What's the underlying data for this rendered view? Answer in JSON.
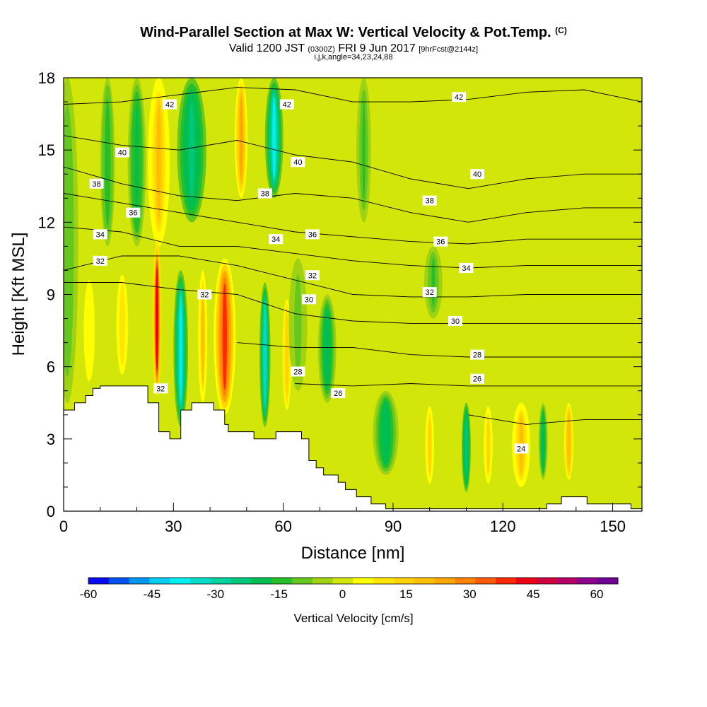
{
  "chart_data": {
    "type": "heatmap",
    "title": {
      "main": "Wind-Parallel Section at Max W: Vertical Velocity & Pot.Temp.",
      "copyright": "(C)",
      "valid_a": "Valid 1200 JST",
      "valid_utc": "(0300Z)",
      "valid_b": "FRI 9 Jun 2017",
      "forecast": "[9hrFcst@2144z]",
      "indices": "i,j,k,angle=34,23,24,88"
    },
    "xlabel": "Distance [nm]",
    "ylabel": "Height [Kft MSL]",
    "xlim": [
      0,
      158
    ],
    "ylim": [
      0,
      18
    ],
    "x_ticks": [
      0,
      30,
      60,
      90,
      120,
      150
    ],
    "y_ticks": [
      0,
      3,
      6,
      9,
      12,
      15,
      18
    ],
    "colorbar": {
      "label": "Vertical Velocity [cm/s]",
      "ticks": [
        -60,
        -45,
        -30,
        -15,
        0,
        15,
        30,
        45,
        60
      ],
      "levels": [
        -60,
        -55,
        -50,
        -45,
        -40,
        -35,
        -30,
        -25,
        -20,
        -15,
        -10,
        -5,
        0,
        5,
        10,
        15,
        20,
        25,
        30,
        35,
        40,
        45,
        50,
        55,
        60,
        65
      ],
      "colors": [
        "#0a0af0",
        "#0050f0",
        "#0096f0",
        "#00cdf0",
        "#00f0f0",
        "#00dcc8",
        "#00d2a0",
        "#00c878",
        "#00be50",
        "#28be28",
        "#64c81e",
        "#a0d214",
        "#d2e60a",
        "#ffff00",
        "#ffe600",
        "#ffd200",
        "#ffbe00",
        "#ffa500",
        "#ff8200",
        "#ff5a00",
        "#ff2800",
        "#f00014",
        "#d2003c",
        "#b40064",
        "#8c008c",
        "#6e0096"
      ]
    },
    "vertical_velocity_columns": [
      {
        "x": 1,
        "w": 6,
        "top": 18,
        "bot": 4.5,
        "v": -10
      },
      {
        "x": 7,
        "w": 5,
        "top": 10,
        "bot": 5,
        "v": 10
      },
      {
        "x": 12,
        "w": 4,
        "top": 18,
        "bot": 11,
        "v": -15
      },
      {
        "x": 16,
        "w": 4,
        "top": 10,
        "bot": 5.5,
        "v": 15
      },
      {
        "x": 20,
        "w": 5,
        "top": 18,
        "bot": 11,
        "v": -20
      },
      {
        "x": 26,
        "w": 6,
        "top": 18,
        "bot": 11,
        "v": 25
      },
      {
        "x": 25.5,
        "w": 2.5,
        "top": 11.2,
        "bot": 4.8,
        "v": 52
      },
      {
        "x": 32,
        "w": 4,
        "top": 10,
        "bot": 3.5,
        "v": -40
      },
      {
        "x": 35,
        "w": 8,
        "top": 18,
        "bot": 12,
        "v": -28
      },
      {
        "x": 38,
        "w": 2.5,
        "top": 10,
        "bot": 4.5,
        "v": 25
      },
      {
        "x": 44,
        "w": 6,
        "top": 10.5,
        "bot": 4,
        "v": 48
      },
      {
        "x": 48.5,
        "w": 3.5,
        "top": 18,
        "bot": 13,
        "v": 30
      },
      {
        "x": 55,
        "w": 3,
        "top": 9.5,
        "bot": 3.5,
        "v": -38
      },
      {
        "x": 57.5,
        "w": 5,
        "top": 18,
        "bot": 13,
        "v": -40
      },
      {
        "x": 61,
        "w": 3,
        "top": 9,
        "bot": 4,
        "v": 20
      },
      {
        "x": 64,
        "w": 5,
        "top": 10.5,
        "bot": 5,
        "v": -8
      },
      {
        "x": 72,
        "w": 5,
        "top": 9,
        "bot": 4.5,
        "v": -22
      },
      {
        "x": 82,
        "w": 4,
        "top": 18,
        "bot": 12,
        "v": -12
      },
      {
        "x": 88,
        "w": 7,
        "top": 5,
        "bot": 1.5,
        "v": -22
      },
      {
        "x": 101,
        "w": 5,
        "top": 11,
        "bot": 8,
        "v": -12
      },
      {
        "x": 100,
        "w": 3,
        "top": 4.5,
        "bot": 1,
        "v": 18
      },
      {
        "x": 110,
        "w": 2.5,
        "top": 4.5,
        "bot": 0.8,
        "v": -28
      },
      {
        "x": 116,
        "w": 3,
        "top": 4.5,
        "bot": 1,
        "v": 18
      },
      {
        "x": 125,
        "w": 5,
        "top": 4.5,
        "bot": 1,
        "v": 25
      },
      {
        "x": 131,
        "w": 2.5,
        "top": 4.5,
        "bot": 1.3,
        "v": -22
      },
      {
        "x": 138,
        "w": 2.5,
        "top": 4.5,
        "bot": 1.3,
        "v": 28
      },
      {
        "x": 126,
        "w": 8,
        "top": 17,
        "bot": 9,
        "v": 5
      },
      {
        "x": 145,
        "w": 8,
        "top": 18,
        "bot": 7,
        "v": 3
      }
    ],
    "potential_temperature_contours": [
      {
        "label": "42",
        "y": [
          16.9,
          17.0,
          17.3,
          17.6,
          17.5,
          17.0,
          17.0,
          17.1,
          17.4,
          17.5,
          17.0
        ],
        "labels_at": [
          [
            29,
            16.9
          ],
          [
            61,
            16.9
          ],
          [
            108,
            17.2
          ]
        ]
      },
      {
        "label": "40",
        "y": [
          15.6,
          15.2,
          15.0,
          15.4,
          14.8,
          14.5,
          13.8,
          13.4,
          13.8,
          14.0,
          14.0
        ],
        "labels_at": [
          [
            16,
            14.9
          ],
          [
            64,
            14.5
          ],
          [
            113,
            14.0
          ]
        ]
      },
      {
        "label": "38",
        "y": [
          14.3,
          13.6,
          13.1,
          12.9,
          13.2,
          13.0,
          12.4,
          12.0,
          12.4,
          12.6,
          12.6
        ],
        "labels_at": [
          [
            9,
            13.6
          ],
          [
            55,
            13.2
          ],
          [
            100,
            12.9
          ]
        ]
      },
      {
        "label": "36",
        "y": [
          13.2,
          12.8,
          12.4,
          12.0,
          11.6,
          11.4,
          11.2,
          11.1,
          11.3,
          11.3,
          11.3
        ],
        "labels_at": [
          [
            19,
            12.4
          ],
          [
            68,
            11.5
          ],
          [
            103,
            11.2
          ]
        ]
      },
      {
        "label": "34",
        "y": [
          11.8,
          11.6,
          11.0,
          11.0,
          10.7,
          10.4,
          10.2,
          10.1,
          10.2,
          10.2,
          10.2
        ],
        "labels_at": [
          [
            10,
            11.5
          ],
          [
            58,
            11.3
          ],
          [
            110,
            10.1
          ]
        ]
      },
      {
        "label": "32",
        "y": [
          10.0,
          10.6,
          10.6,
          10.2,
          9.6,
          9.0,
          8.9,
          8.9,
          9.0,
          9.0,
          9.0
        ],
        "labels_at": [
          [
            10,
            10.4
          ],
          [
            68,
            9.8
          ],
          [
            100,
            9.1
          ]
        ]
      },
      {
        "label": "30",
        "y": [
          9.5,
          9.5,
          9.2,
          9.0,
          8.2,
          7.9,
          7.8,
          7.8,
          7.8,
          7.8,
          7.8
        ],
        "labels_at": [
          [
            67,
            8.8
          ],
          [
            107,
            7.9
          ]
        ]
      },
      {
        "label": "28",
        "y": [
          null,
          null,
          null,
          7.0,
          6.8,
          6.8,
          6.5,
          6.4,
          6.4,
          6.4,
          6.4
        ],
        "labels_at": [
          [
            64,
            5.8
          ],
          [
            113,
            6.5
          ]
        ]
      },
      {
        "label": "26",
        "y": [
          null,
          null,
          null,
          null,
          5.3,
          5.2,
          5.3,
          5.2,
          5.2,
          5.2,
          5.2
        ],
        "labels_at": [
          [
            75,
            4.9
          ],
          [
            113,
            5.5
          ]
        ]
      },
      {
        "label": "24",
        "y": [
          null,
          null,
          null,
          null,
          null,
          null,
          null,
          4.0,
          3.6,
          3.8,
          3.8
        ],
        "labels_at": [
          [
            125,
            2.6
          ]
        ]
      }
    ],
    "inline_labels_extra": [
      {
        "label": "32",
        "at": [
          38.5,
          9.0
        ]
      },
      {
        "label": "32",
        "at": [
          26.5,
          5.1
        ]
      }
    ],
    "terrain_height": [
      [
        0,
        4.2
      ],
      [
        3,
        4.2
      ],
      [
        3,
        4.5
      ],
      [
        6,
        4.5
      ],
      [
        6,
        4.8
      ],
      [
        8,
        4.8
      ],
      [
        8,
        5.1
      ],
      [
        10,
        5.1
      ],
      [
        10,
        5.2
      ],
      [
        23,
        5.2
      ],
      [
        23,
        4.5
      ],
      [
        26,
        4.5
      ],
      [
        26,
        3.3
      ],
      [
        29,
        3.3
      ],
      [
        29,
        3.0
      ],
      [
        32,
        3.0
      ],
      [
        32,
        4.2
      ],
      [
        35,
        4.2
      ],
      [
        35,
        4.5
      ],
      [
        41,
        4.5
      ],
      [
        41,
        4.2
      ],
      [
        44,
        4.2
      ],
      [
        44,
        3.6
      ],
      [
        45,
        3.6
      ],
      [
        45,
        3.3
      ],
      [
        52,
        3.3
      ],
      [
        52,
        3.0
      ],
      [
        58,
        3.0
      ],
      [
        58,
        3.3
      ],
      [
        65,
        3.3
      ],
      [
        65,
        3.0
      ],
      [
        67,
        3.0
      ],
      [
        67,
        2.1
      ],
      [
        69,
        2.1
      ],
      [
        69,
        1.8
      ],
      [
        71,
        1.8
      ],
      [
        71,
        1.5
      ],
      [
        75,
        1.5
      ],
      [
        75,
        1.2
      ],
      [
        77,
        1.2
      ],
      [
        77,
        0.9
      ],
      [
        80,
        0.9
      ],
      [
        80,
        0.6
      ],
      [
        84,
        0.6
      ],
      [
        84,
        0.3
      ],
      [
        88,
        0.3
      ],
      [
        88,
        0.1
      ],
      [
        132,
        0.1
      ],
      [
        132,
        0.3
      ],
      [
        136,
        0.3
      ],
      [
        136,
        0.6
      ],
      [
        143,
        0.6
      ],
      [
        143,
        0.3
      ],
      [
        155,
        0.3
      ],
      [
        155,
        0.1
      ],
      [
        158,
        0.1
      ]
    ]
  }
}
